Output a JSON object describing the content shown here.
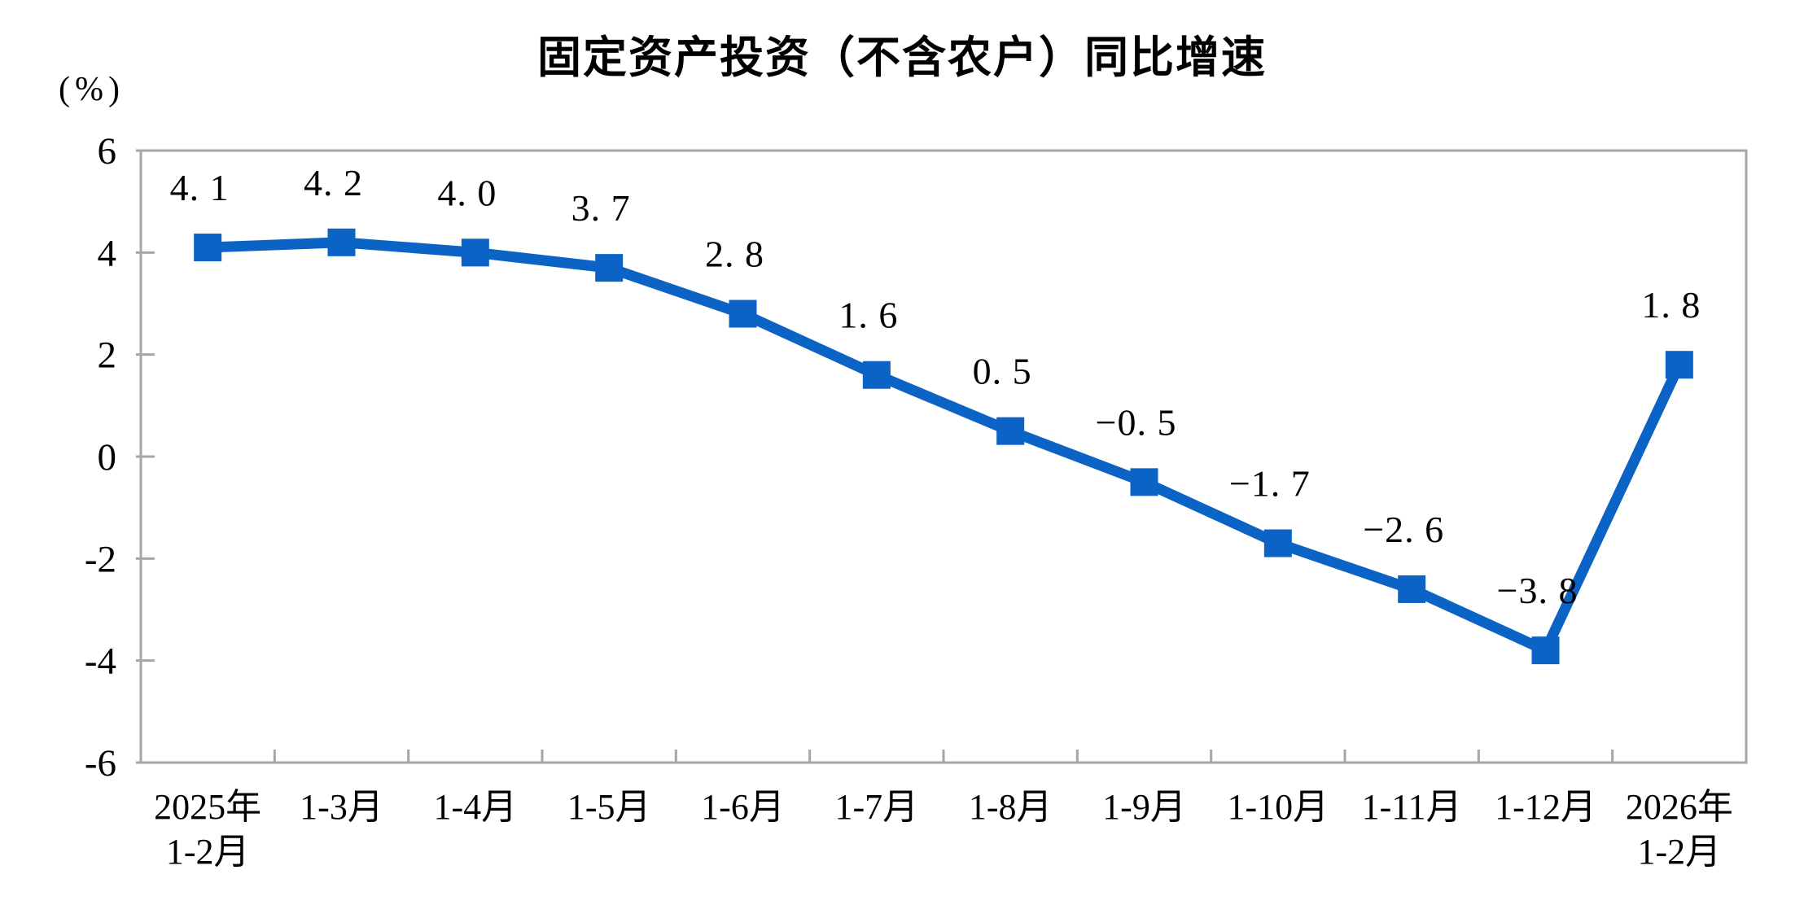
{
  "chart": {
    "title": "固定资产投资（不含农户）同比增速",
    "unit_label": "(%)"
  },
  "chart_data": {
    "type": "line",
    "title": "固定资产投资（不含农户）同比增速",
    "ylabel": "(%)",
    "xlabel": "",
    "categories": [
      "2025年 1-2月",
      "1-3月",
      "1-4月",
      "1-5月",
      "1-6月",
      "1-7月",
      "1-8月",
      "1-9月",
      "1-10月",
      "1-11月",
      "1-12月",
      "2026年 1-2月"
    ],
    "category_label_lines": [
      [
        "2025年",
        "1-2月"
      ],
      [
        "1-3月"
      ],
      [
        "1-4月"
      ],
      [
        "1-5月"
      ],
      [
        "1-6月"
      ],
      [
        "1-7月"
      ],
      [
        "1-8月"
      ],
      [
        "1-9月"
      ],
      [
        "1-10月"
      ],
      [
        "1-11月"
      ],
      [
        "1-12月"
      ],
      [
        "2026年",
        "1-2月"
      ]
    ],
    "series": [
      {
        "name": "固定资产投资（不含农户）同比增速",
        "values": [
          4.1,
          4.2,
          4.0,
          3.7,
          2.8,
          1.6,
          0.5,
          -0.5,
          -1.7,
          -2.6,
          -3.8,
          1.8
        ]
      }
    ],
    "point_labels": [
      "4. 1",
      "4. 2",
      "4. 0",
      "3. 7",
      "2. 8",
      "1. 6",
      "0. 5",
      "−0. 5",
      "−1. 7",
      "−2. 6",
      "−3. 8",
      "1. 8"
    ],
    "y_ticks": [
      "6",
      "4",
      "2",
      "0",
      "-2",
      "-4",
      "-6"
    ],
    "y_tick_values": [
      6,
      4,
      2,
      0,
      -2,
      -4,
      -6
    ],
    "ylim": [
      -6,
      6
    ],
    "grid": false,
    "legend": "none",
    "line_color": "#0B63C5",
    "marker": "square",
    "marker_color": "#0B63C5",
    "axis_color": "#A6A6A6",
    "text_color": "#000000"
  }
}
